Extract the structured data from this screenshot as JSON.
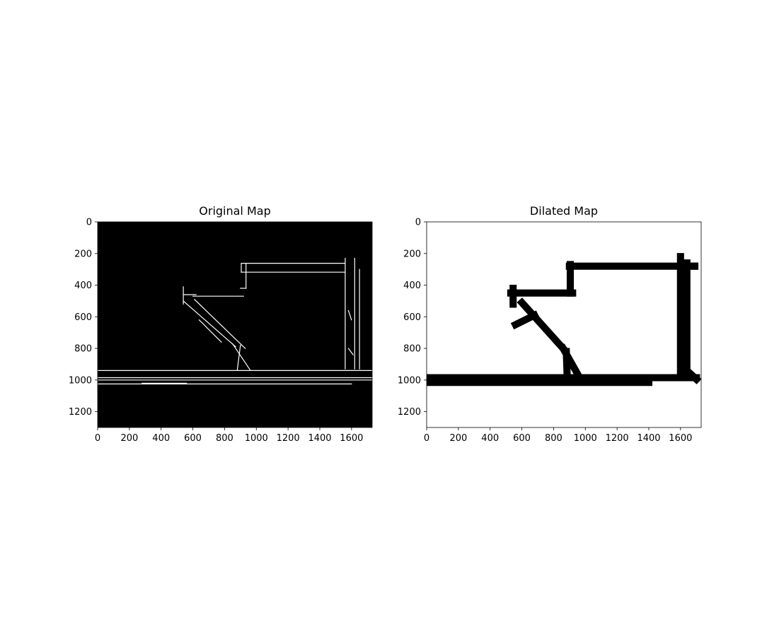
{
  "chart_data": [
    {
      "type": "heatmap",
      "title": "Original Map",
      "xlabel": "",
      "ylabel": "",
      "xlim": [
        0,
        1730
      ],
      "ylim": [
        1300,
        0
      ],
      "xticks": [
        0,
        200,
        400,
        600,
        800,
        1000,
        1200,
        1400,
        1600
      ],
      "yticks": [
        0,
        200,
        400,
        600,
        800,
        1000,
        1200
      ],
      "background_color": "#000000",
      "feature_color": "#ffffff",
      "stroke_width": 5,
      "features": [
        {
          "name": "top-room-wall",
          "points": [
            [
              905,
              262
            ],
            [
              1560,
              262
            ]
          ]
        },
        {
          "name": "top-room-wall-2",
          "points": [
            [
              905,
              318
            ],
            [
              1560,
              318
            ]
          ]
        },
        {
          "name": "upper-step",
          "points": [
            [
              905,
              262
            ],
            [
              905,
              318
            ]
          ]
        },
        {
          "name": "step-wall",
          "points": [
            [
              935,
              262
            ],
            [
              935,
              420
            ]
          ]
        },
        {
          "name": "step-ledge",
          "points": [
            [
              900,
              420
            ],
            [
              935,
              420
            ]
          ]
        },
        {
          "name": "left-ledge",
          "points": [
            [
              600,
              470
            ],
            [
              920,
              470
            ]
          ]
        },
        {
          "name": "left-ledge-2",
          "points": [
            [
              540,
              460
            ],
            [
              620,
              460
            ]
          ]
        },
        {
          "name": "left-stub",
          "points": [
            [
              540,
              410
            ],
            [
              540,
              520
            ]
          ]
        },
        {
          "name": "diagonal-wall-1",
          "points": [
            [
              540,
              500
            ],
            [
              870,
              790
            ]
          ]
        },
        {
          "name": "diagonal-wall-2",
          "points": [
            [
              610,
              490
            ],
            [
              930,
              800
            ]
          ]
        },
        {
          "name": "diagonal-wall-3",
          "points": [
            [
              640,
              620
            ],
            [
              780,
              760
            ]
          ]
        },
        {
          "name": "diagonal-lower",
          "points": [
            [
              850,
              770
            ],
            [
              960,
              935
            ]
          ]
        },
        {
          "name": "diagonal-lower-2",
          "points": [
            [
              900,
              780
            ],
            [
              880,
              935
            ]
          ]
        },
        {
          "name": "right-wall-1",
          "points": [
            [
              1560,
              230
            ],
            [
              1560,
              930
            ]
          ]
        },
        {
          "name": "right-wall-2",
          "points": [
            [
              1620,
              230
            ],
            [
              1620,
              930
            ]
          ]
        },
        {
          "name": "right-wall-3",
          "points": [
            [
              1650,
              300
            ],
            [
              1650,
              930
            ]
          ]
        },
        {
          "name": "right-blob-1",
          "points": [
            [
              1580,
              560
            ],
            [
              1600,
              620
            ]
          ]
        },
        {
          "name": "right-blob-2",
          "points": [
            [
              1580,
              800
            ],
            [
              1610,
              840
            ]
          ]
        },
        {
          "name": "floor-line-1",
          "points": [
            [
              0,
              940
            ],
            [
              1730,
              940
            ]
          ]
        },
        {
          "name": "floor-line-2",
          "points": [
            [
              0,
              985
            ],
            [
              1730,
              985
            ]
          ]
        },
        {
          "name": "floor-line-3",
          "points": [
            [
              0,
              1025
            ],
            [
              1600,
              1025
            ]
          ]
        },
        {
          "name": "bottom-left-wall",
          "points": [
            [
              0,
              1000
            ],
            [
              1730,
              1000
            ]
          ]
        },
        {
          "name": "bottom-dashes",
          "points": [
            [
              280,
              1020
            ],
            [
              560,
              1020
            ]
          ]
        }
      ]
    },
    {
      "type": "heatmap",
      "title": "Dilated Map",
      "xlabel": "",
      "ylabel": "",
      "xlim": [
        0,
        1730
      ],
      "ylim": [
        1300,
        0
      ],
      "xticks": [
        0,
        200,
        400,
        600,
        800,
        1000,
        1200,
        1400,
        1600
      ],
      "yticks": [
        0,
        200,
        400,
        600,
        800,
        1000,
        1200
      ],
      "background_color": "#ffffff",
      "feature_color": "#000000",
      "stroke_width": 45,
      "features": [
        {
          "name": "top-room-wall",
          "points": [
            [
              900,
              280
            ],
            [
              1690,
              280
            ]
          ]
        },
        {
          "name": "upper-step",
          "points": [
            [
              905,
              270
            ],
            [
              905,
              450
            ]
          ]
        },
        {
          "name": "left-ledge",
          "points": [
            [
              530,
              450
            ],
            [
              920,
              450
            ]
          ]
        },
        {
          "name": "left-stub",
          "points": [
            [
              545,
              420
            ],
            [
              545,
              520
            ]
          ]
        },
        {
          "name": "diagonal-wall",
          "points": [
            [
              600,
              510
            ],
            [
              860,
              800
            ]
          ]
        },
        {
          "name": "diagonal-lower",
          "points": [
            [
              860,
              800
            ],
            [
              950,
              960
            ]
          ]
        },
        {
          "name": "diagonal-lower-2",
          "points": [
            [
              880,
              820
            ],
            [
              885,
              960
            ]
          ]
        },
        {
          "name": "right-wall",
          "points": [
            [
              1600,
              220
            ],
            [
              1600,
              960
            ]
          ]
        },
        {
          "name": "right-wall-2",
          "points": [
            [
              1640,
              260
            ],
            [
              1640,
              960
            ]
          ]
        },
        {
          "name": "right-corner",
          "points": [
            [
              1600,
              280
            ],
            [
              1690,
              280
            ]
          ]
        },
        {
          "name": "floor-wall",
          "points": [
            [
              0,
              985
            ],
            [
              1700,
              985
            ]
          ]
        },
        {
          "name": "floor-bottom",
          "points": [
            [
              0,
              1015
            ],
            [
              1400,
              1015
            ]
          ]
        },
        {
          "name": "right-bottom-corner",
          "points": [
            [
              1640,
              940
            ],
            [
              1700,
              995
            ]
          ]
        },
        {
          "name": "spikes-left",
          "points": [
            [
              560,
              650
            ],
            [
              680,
              590
            ]
          ]
        }
      ]
    }
  ]
}
